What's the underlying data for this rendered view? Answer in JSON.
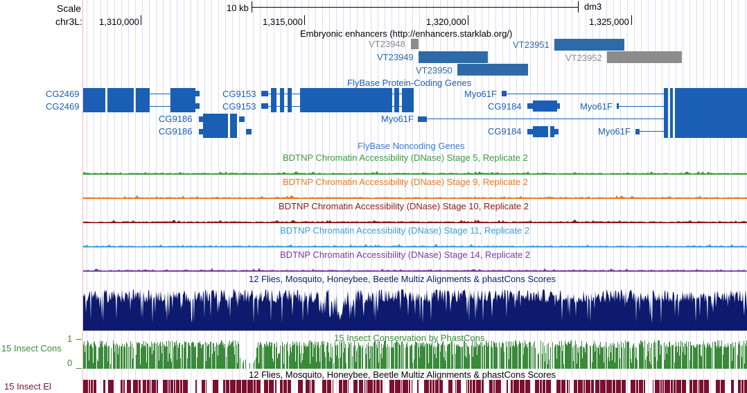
{
  "ruler": {
    "scale_label": "Scale",
    "scale_text": "10 kb",
    "assembly": "dm3",
    "chrom_label": "chr3L:",
    "ticks": [
      "1,310,000",
      "1,315,000",
      "1,320,000",
      "1,325,000"
    ]
  },
  "enhancers": {
    "title": "Embryonic enhancers (http://enhancers.starklab.org/)",
    "items": [
      {
        "name": "VT23948",
        "color": "#8c8c8c"
      },
      {
        "name": "VT23949",
        "color": "#2e6aa8"
      },
      {
        "name": "VT23950",
        "color": "#2e6aa8"
      },
      {
        "name": "VT23951",
        "color": "#2e6aa8"
      },
      {
        "name": "VT23952",
        "color": "#8c8c8c"
      }
    ]
  },
  "protein_genes": {
    "title": "FlyBase Protein-Coding Genes",
    "color": "#1a5fb4",
    "labels": [
      "CG2469",
      "CG2469",
      "CG9153",
      "CG9153",
      "CG9186",
      "CG9186",
      "Myo61F",
      "Myo61F",
      "Myo61F",
      "Myo61F",
      "CG9184",
      "CG9184"
    ]
  },
  "noncoding_title": "FlyBase Noncoding Genes",
  "dnase_tracks": [
    {
      "title": "BDTNP Chromatin Accessibility (DNase) Stage 5, Replicate 2",
      "color": "#3a9a3a"
    },
    {
      "title": "BDTNP Chromatin Accessibility (DNase) Stage 9, Replicate 2",
      "color": "#e67a20"
    },
    {
      "title": "BDTNP Chromatin Accessibility (DNase) Stage 10, Replicate 2",
      "color": "#8b1a1a"
    },
    {
      "title": "BDTNP Chromatin Accessibility (DNase) Stage 11, Replicate 2",
      "color": "#3aa0d8"
    },
    {
      "title": "BDTNP Chromatin Accessibility (DNase) Stage 14, Replicate 2",
      "color": "#7a3aa0"
    }
  ],
  "multiz": {
    "title": "12 Flies, Mosquito, Honeybee, Beetle Multiz Alignments & phastCons Scores",
    "color": "#0d1a6e"
  },
  "phastcons": {
    "side_label": "15 Insect Cons",
    "title": "15 Insect Conservation by PhastCons",
    "axis_max": "1",
    "axis_min": "0",
    "color": "#3a8a3a"
  },
  "elements": {
    "side_label": "15 Insect El",
    "title": "12 Flies, Mosquito, Honeybee, Beetle Multiz Alignments & phastCons Scores",
    "color": "#7a1030"
  }
}
